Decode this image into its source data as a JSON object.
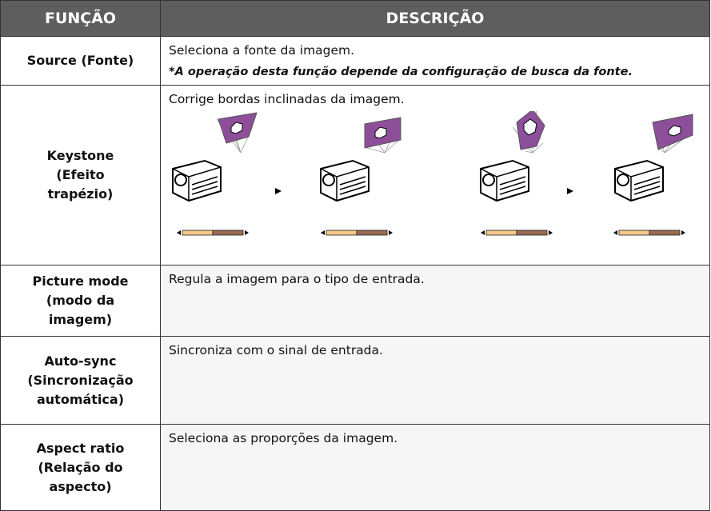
{
  "header": {
    "columns": [
      "FUNÇÃO",
      "DESCRIÇÃO"
    ]
  },
  "table": {
    "rows": [
      {
        "function_lines": [
          "Source (Fonte)"
        ],
        "description": "Seleciona a fonte da imagem.",
        "note": "*A operação desta função depende da configuração de busca da fonte."
      },
      {
        "function_lines": [
          "Keystone",
          "(Efeito",
          "trapézio)"
        ],
        "description": "Corrige bordas inclinadas da imagem."
      },
      {
        "function_lines": [
          "Picture mode",
          "(modo da",
          "imagem)"
        ],
        "description": "Regula a imagem para o tipo de entrada."
      },
      {
        "function_lines": [
          "Auto-sync",
          "(Sincronização",
          "automática)"
        ],
        "description": "Sincroniza com o sinal de entrada."
      },
      {
        "function_lines": [
          "Aspect ratio",
          "(Relação do",
          "aspecto)"
        ],
        "description": "Seleciona as proporções da imagem."
      }
    ]
  }
}
